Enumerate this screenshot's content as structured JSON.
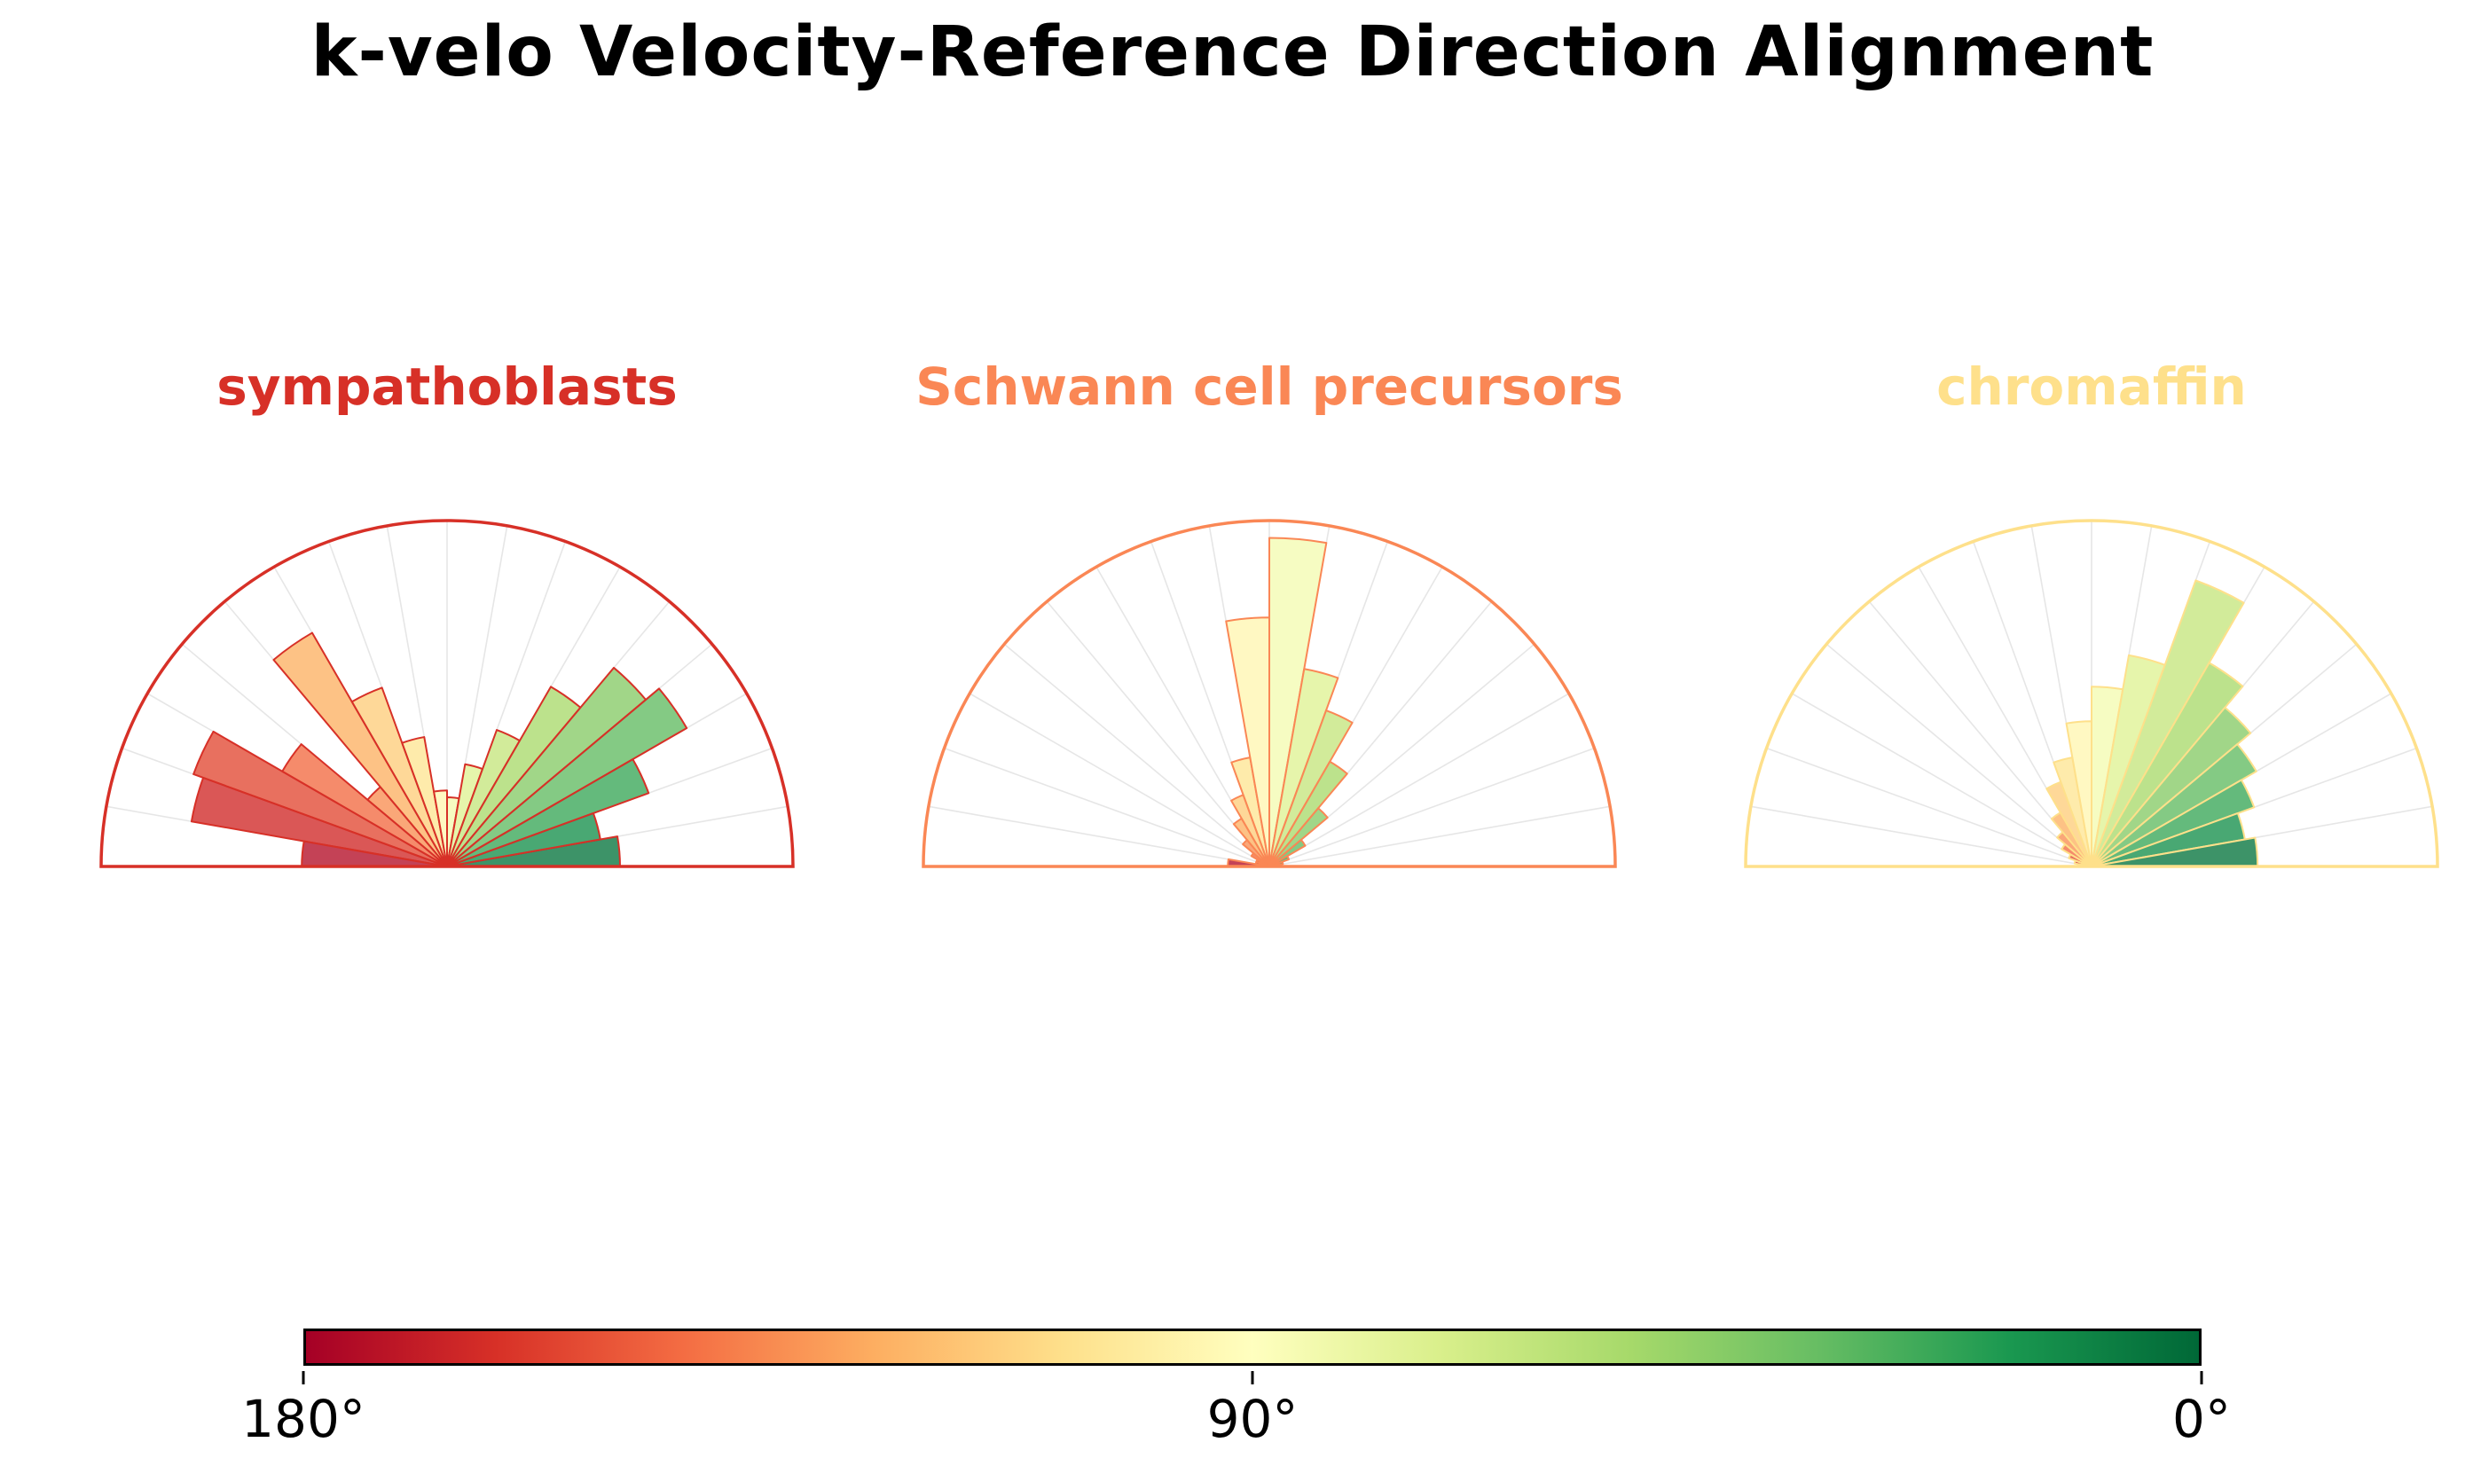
{
  "chart_data": {
    "type": "bar",
    "projection": "polar-half",
    "title": "k-velo Velocity-Reference Direction Alignment",
    "bin_width_deg": 10,
    "bin_centers_deg": [
      175,
      165,
      155,
      145,
      135,
      125,
      115,
      105,
      95,
      85,
      75,
      65,
      55,
      45,
      35,
      25,
      15,
      5
    ],
    "rlim": [
      0,
      1
    ],
    "grid": {
      "spokes_every_deg": 10,
      "color": "#e6e6e6"
    },
    "series": [
      {
        "name": "sympathoblasts",
        "outline_color": "#d73027",
        "values": [
          0.42,
          0.75,
          0.78,
          0.55,
          0.3,
          0.78,
          0.55,
          0.38,
          0.22,
          0.2,
          0.3,
          0.42,
          0.6,
          0.75,
          0.8,
          0.62,
          0.45,
          0.5
        ]
      },
      {
        "name": "Schwann cell precursors",
        "outline_color": "#fa8755",
        "values": [
          0.12,
          0.04,
          0.04,
          0.06,
          0.1,
          0.16,
          0.22,
          0.32,
          0.72,
          0.95,
          0.58,
          0.48,
          0.35,
          0.22,
          0.12,
          0.06,
          0.04,
          0.03
        ]
      },
      {
        "name": "chromaffin",
        "outline_color": "#fee08b",
        "values": [
          0.04,
          0.05,
          0.07,
          0.1,
          0.13,
          0.18,
          0.26,
          0.32,
          0.42,
          0.52,
          0.62,
          0.88,
          0.68,
          0.6,
          0.55,
          0.5,
          0.45,
          0.48
        ]
      }
    ],
    "color_encoding": {
      "variable": "angle_deg",
      "colormap": "RdYlGn",
      "domain_deg": [
        180,
        0
      ],
      "stops": [
        "#a50026",
        "#d73027",
        "#f46d43",
        "#fdae61",
        "#fee08b",
        "#ffffbf",
        "#d9ef8b",
        "#a6d96a",
        "#66bd63",
        "#1a9850",
        "#006837"
      ]
    },
    "colorbar": {
      "ticks": [
        "180°",
        "90°",
        "0°"
      ]
    }
  }
}
